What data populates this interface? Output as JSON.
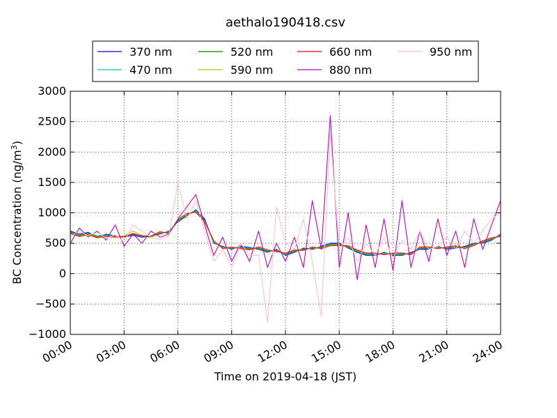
{
  "chart_data": {
    "type": "line",
    "title": "aethalo190418.csv",
    "xlabel": "Time on 2019-04-18 (JST)",
    "ylabel": "BC Concentration (ng/m",
    "ylabel_superscript": "3",
    "ylabel_close": ")",
    "xlim": [
      0,
      24
    ],
    "ylim": [
      -1000,
      3000
    ],
    "xticks": [
      0,
      3,
      6,
      9,
      12,
      15,
      18,
      21,
      24
    ],
    "xtick_labels": [
      "00:00",
      "03:00",
      "06:00",
      "09:00",
      "12:00",
      "15:00",
      "18:00",
      "21:00",
      "24:00"
    ],
    "yticks": [
      -1000,
      -500,
      0,
      500,
      1000,
      1500,
      2000,
      2500,
      3000
    ],
    "ytick_labels": [
      "−1000",
      "−500",
      "0",
      "500",
      "1000",
      "1500",
      "2000",
      "2500",
      "3000"
    ],
    "grid": true,
    "grid_style": "dotted",
    "legend_position": "top-center, above plot",
    "x": [
      0,
      0.5,
      1,
      1.5,
      2,
      2.5,
      3,
      3.5,
      4,
      4.5,
      5,
      5.5,
      6,
      6.5,
      7,
      7.5,
      8,
      8.5,
      9,
      9.5,
      10,
      10.5,
      11,
      11.5,
      12,
      12.5,
      13,
      13.5,
      14,
      14.5,
      15,
      15.5,
      16,
      16.5,
      17,
      17.5,
      18,
      18.5,
      19,
      19.5,
      20,
      20.5,
      21,
      21.5,
      22,
      22.5,
      23,
      23.5,
      24
    ],
    "series": [
      {
        "name": "370 nm",
        "color": "#0000ff",
        "values": [
          700,
          650,
          680,
          600,
          650,
          620,
          600,
          630,
          600,
          620,
          650,
          700,
          850,
          950,
          1050,
          900,
          500,
          450,
          400,
          450,
          430,
          400,
          350,
          400,
          300,
          350,
          420,
          400,
          450,
          500,
          500,
          420,
          350,
          300,
          300,
          350,
          300,
          300,
          350,
          400,
          400,
          450,
          400,
          420,
          450,
          500,
          500,
          550,
          650
        ]
      },
      {
        "name": "470 nm",
        "color": "#00bfbf",
        "values": [
          690,
          640,
          670,
          620,
          640,
          610,
          600,
          640,
          610,
          610,
          660,
          690,
          860,
          960,
          1040,
          880,
          510,
          440,
          410,
          440,
          420,
          410,
          360,
          390,
          310,
          360,
          410,
          410,
          440,
          490,
          490,
          430,
          360,
          310,
          310,
          340,
          310,
          310,
          340,
          410,
          410,
          440,
          410,
          430,
          440,
          490,
          510,
          560,
          640
        ]
      },
      {
        "name": "520 nm",
        "color": "#008000",
        "values": [
          680,
          630,
          660,
          610,
          630,
          600,
          610,
          650,
          620,
          600,
          670,
          680,
          870,
          970,
          1030,
          870,
          520,
          430,
          420,
          430,
          410,
          420,
          370,
          380,
          320,
          370,
          400,
          420,
          430,
          480,
          480,
          440,
          370,
          320,
          320,
          330,
          320,
          320,
          330,
          420,
          420,
          430,
          420,
          440,
          430,
          480,
          520,
          570,
          630
        ]
      },
      {
        "name": "590 nm",
        "color": "#bfbf00",
        "values": [
          670,
          620,
          650,
          600,
          620,
          610,
          620,
          700,
          630,
          610,
          680,
          670,
          880,
          980,
          1020,
          860,
          530,
          420,
          430,
          420,
          400,
          430,
          380,
          370,
          330,
          380,
          390,
          430,
          420,
          470,
          470,
          450,
          380,
          330,
          330,
          320,
          330,
          330,
          320,
          430,
          430,
          420,
          430,
          450,
          420,
          470,
          530,
          580,
          620
        ]
      },
      {
        "name": "660 nm",
        "color": "#ff0000",
        "values": [
          660,
          610,
          640,
          590,
          610,
          600,
          610,
          660,
          620,
          620,
          690,
          660,
          890,
          990,
          1010,
          850,
          540,
          410,
          440,
          410,
          390,
          440,
          390,
          360,
          340,
          390,
          380,
          440,
          410,
          460,
          460,
          460,
          390,
          340,
          340,
          310,
          340,
          340,
          310,
          440,
          440,
          410,
          440,
          460,
          410,
          460,
          540,
          590,
          610
        ]
      },
      {
        "name": "880 nm",
        "color": "#bf00bf",
        "values": [
          500,
          750,
          600,
          700,
          550,
          800,
          450,
          650,
          500,
          700,
          600,
          650,
          900,
          1100,
          1300,
          800,
          300,
          600,
          200,
          500,
          200,
          700,
          100,
          500,
          200,
          600,
          100,
          1200,
          400,
          2600,
          100,
          1000,
          -100,
          800,
          100,
          900,
          50,
          1200,
          100,
          700,
          200,
          900,
          300,
          700,
          100,
          900,
          400,
          800,
          1200
        ]
      },
      {
        "name": "950 nm",
        "color": "#ffc0cb",
        "values": [
          600,
          700,
          620,
          680,
          580,
          640,
          520,
          800,
          700,
          600,
          560,
          620,
          1500,
          900,
          1200,
          700,
          200,
          400,
          100,
          500,
          300,
          300,
          -800,
          1100,
          500,
          400,
          900,
          200,
          -700,
          2300,
          400,
          600,
          200,
          500,
          300,
          600,
          250,
          550,
          400,
          700,
          400,
          450,
          600,
          400,
          700,
          500,
          700,
          900,
          1000
        ]
      }
    ]
  }
}
